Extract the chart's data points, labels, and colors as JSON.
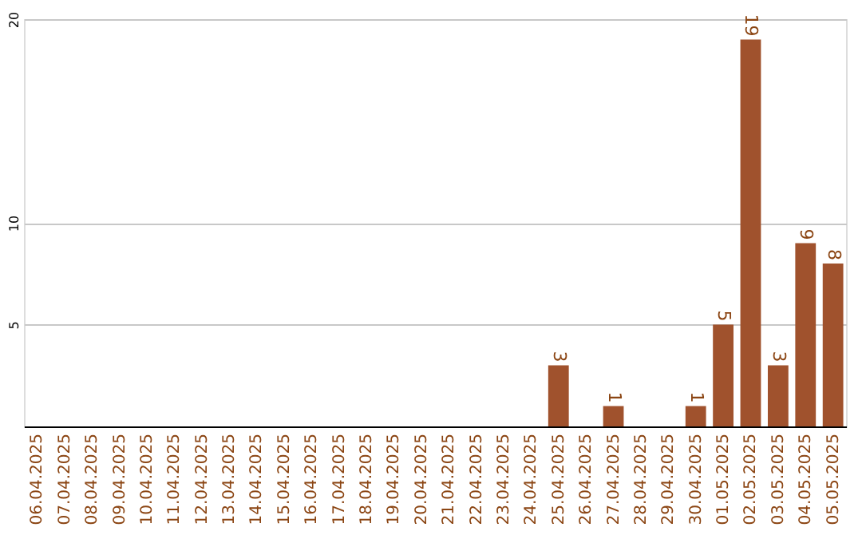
{
  "chart_data": {
    "type": "bar",
    "categories": [
      "06.04.2025",
      "07.04.2025",
      "08.04.2025",
      "09.04.2025",
      "10.04.2025",
      "11.04.2025",
      "12.04.2025",
      "13.04.2025",
      "14.04.2025",
      "15.04.2025",
      "16.04.2025",
      "17.04.2025",
      "18.04.2025",
      "19.04.2025",
      "20.04.2025",
      "21.04.2025",
      "22.04.2025",
      "23.04.2025",
      "24.04.2025",
      "25.04.2025",
      "26.04.2025",
      "27.04.2025",
      "28.04.2025",
      "29.04.2025",
      "30.04.2025",
      "01.05.2025",
      "02.05.2025",
      "03.05.2025",
      "04.05.2025",
      "05.05.2025"
    ],
    "values": [
      0,
      0,
      0,
      0,
      0,
      0,
      0,
      0,
      0,
      0,
      0,
      0,
      0,
      0,
      0,
      0,
      0,
      0,
      0,
      3,
      0,
      1,
      0,
      0,
      1,
      5,
      19,
      3,
      9,
      8
    ],
    "value_labels": [
      null,
      null,
      null,
      null,
      null,
      null,
      null,
      null,
      null,
      null,
      null,
      null,
      null,
      null,
      null,
      null,
      null,
      null,
      null,
      "3",
      null,
      "1",
      null,
      null,
      "1",
      "5",
      "19",
      "3",
      "9",
      "8"
    ],
    "color": "#a0522d",
    "ylim": [
      0,
      20
    ],
    "yticks": [
      5,
      10,
      20
    ],
    "grid": "y"
  }
}
